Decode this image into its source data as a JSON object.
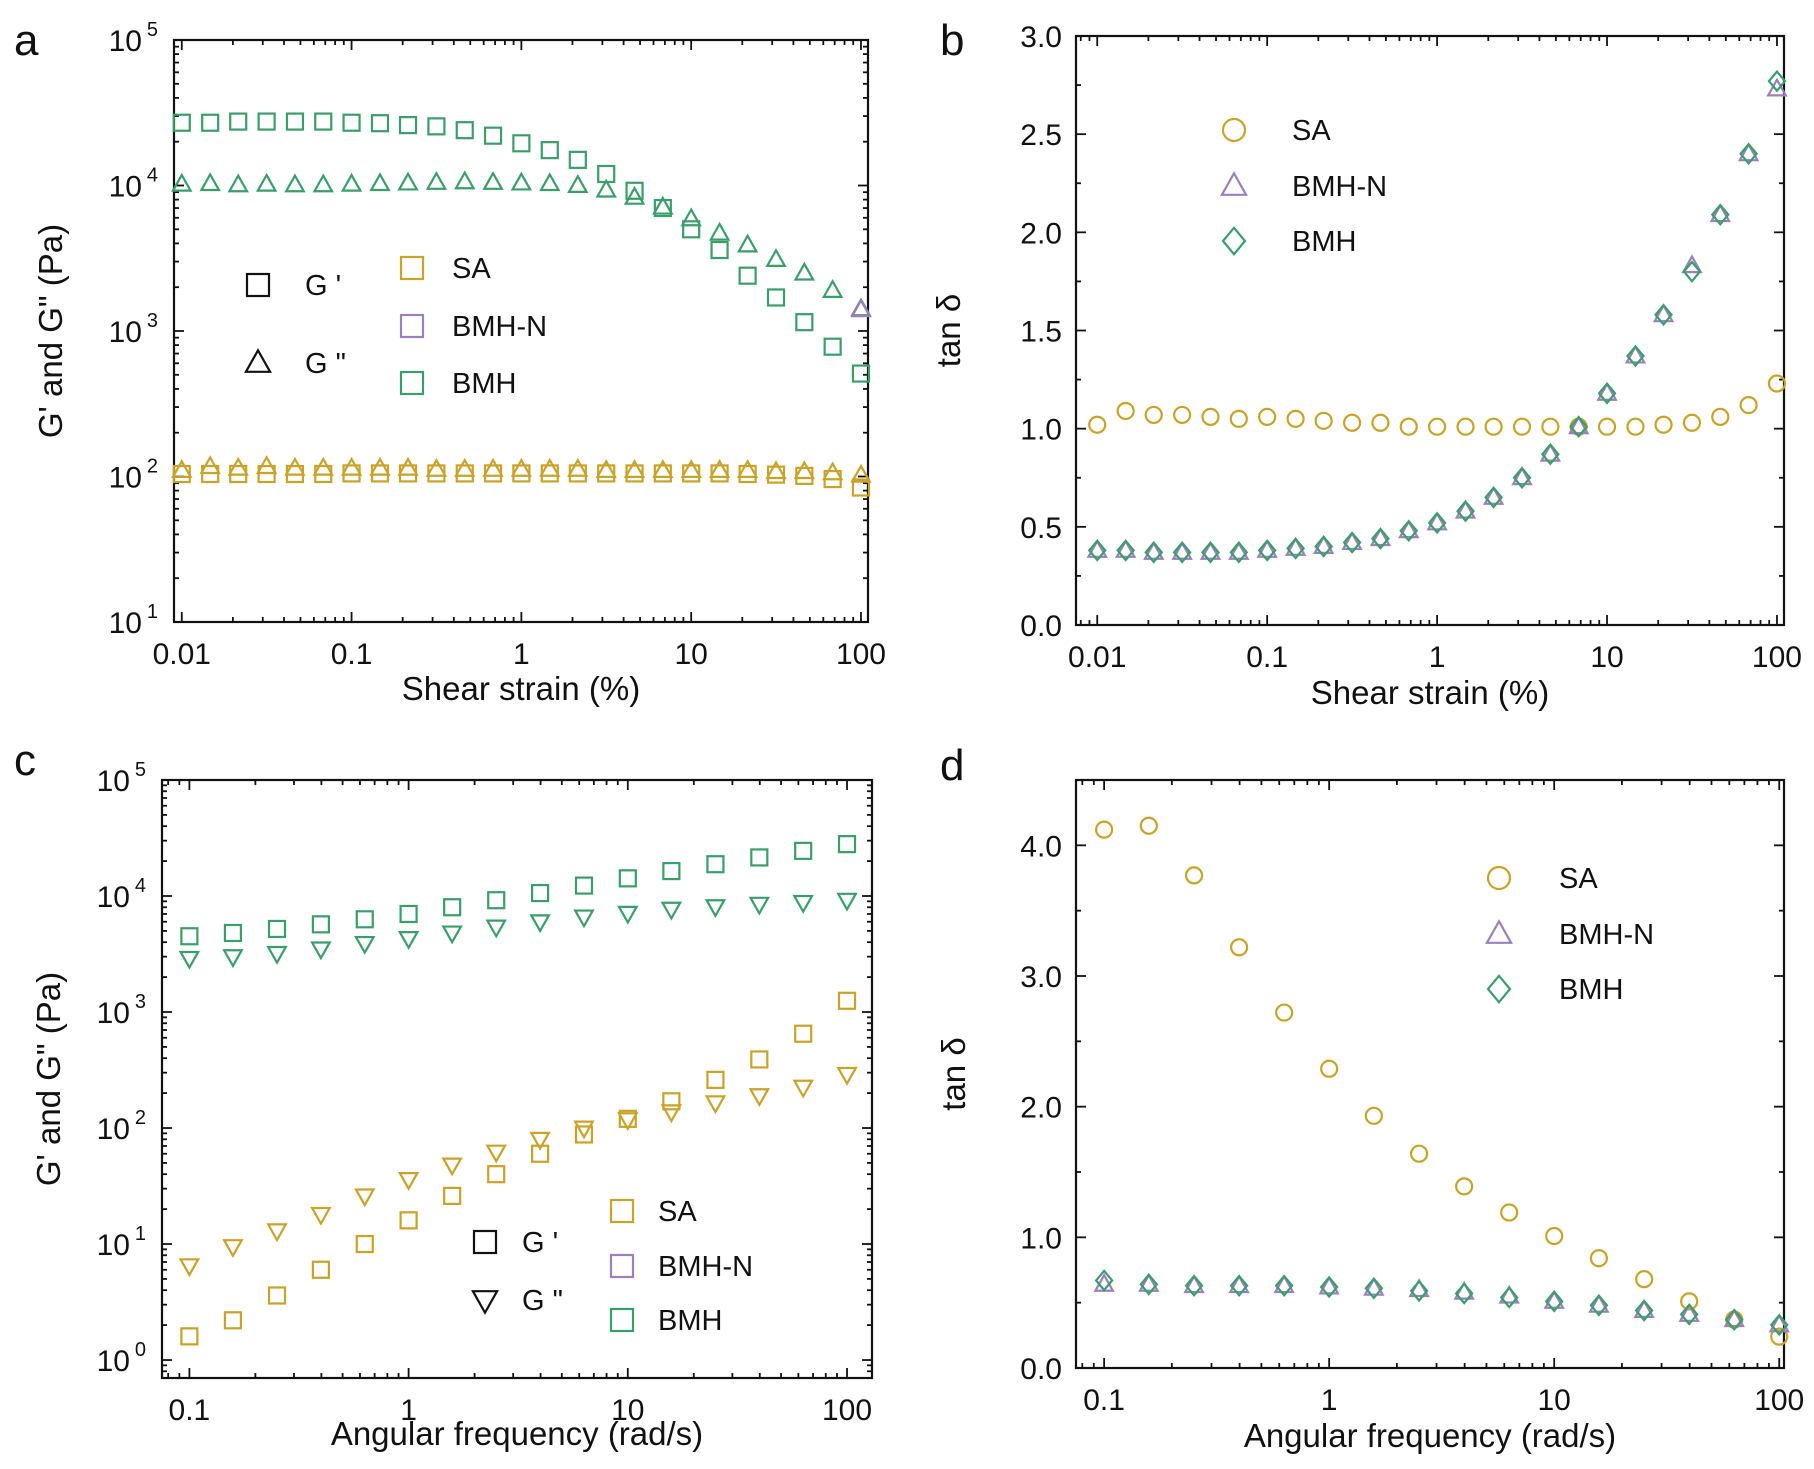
{
  "colors": {
    "SA": "#c9a227",
    "BMH-N": "#9b7fc0",
    "BMH": "#3a9e6a",
    "axis": "#111111"
  },
  "chart_data": [
    {
      "panel": "a",
      "type": "scatter",
      "xlabel": "Shear strain (%)",
      "ylabel": "G' and G\" (Pa)",
      "xscale": "log",
      "yscale": "log",
      "xlim": [
        0.009,
        110
      ],
      "ylim": [
        10,
        100000
      ],
      "xticks": [
        0.01,
        0.1,
        1,
        10,
        100
      ],
      "xtick_labels": [
        "0.01",
        "0.1",
        "1",
        "10",
        "100"
      ],
      "yticks": [
        10,
        100,
        1000,
        10000,
        100000
      ],
      "ytick_labels": [
        [
          "10",
          "1"
        ],
        [
          "10",
          "2"
        ],
        [
          "10",
          "3"
        ],
        [
          "10",
          "4"
        ],
        [
          "10",
          "5"
        ]
      ],
      "x": [
        0.01,
        0.0147,
        0.0215,
        0.0316,
        0.0464,
        0.0681,
        0.1,
        0.147,
        0.215,
        0.316,
        0.464,
        0.681,
        1,
        1.47,
        2.15,
        3.16,
        4.64,
        6.81,
        10,
        14.7,
        21.5,
        31.6,
        46.4,
        68.1,
        100
      ],
      "series": [
        {
          "name": "SA",
          "quantity": "G '",
          "marker": "square",
          "color_key": "SA",
          "values": [
            104,
            104,
            104,
            104,
            104,
            104,
            105,
            105,
            105,
            105,
            105,
            105,
            105,
            105,
            105,
            105,
            105,
            105,
            105,
            105,
            104,
            103,
            101,
            96,
            84
          ]
        },
        {
          "name": "SA",
          "quantity": "G \"",
          "marker": "triangle",
          "color_key": "SA",
          "values": [
            110,
            117,
            114,
            117,
            114,
            114,
            114,
            114,
            114,
            112,
            112,
            112,
            112,
            112,
            112,
            110,
            110,
            110,
            110,
            110,
            110,
            108,
            108,
            106,
            102
          ]
        },
        {
          "name": "BMH",
          "quantity": "G '",
          "marker": "square",
          "color_key": "BMH",
          "values": [
            27000,
            27000,
            27500,
            27500,
            27500,
            27500,
            27000,
            26800,
            26000,
            25500,
            24000,
            22000,
            19500,
            17500,
            15000,
            12000,
            9200,
            7000,
            5000,
            3600,
            2400,
            1700,
            1150,
            780,
            510
          ]
        },
        {
          "name": "BMH",
          "quantity": "G \"",
          "marker": "triangle",
          "color_key": "BMH",
          "values": [
            10200,
            10300,
            10100,
            10200,
            10100,
            10100,
            10200,
            10300,
            10400,
            10500,
            10600,
            10500,
            10400,
            10300,
            10000,
            9300,
            8300,
            7100,
            5900,
            4700,
            3900,
            3100,
            2500,
            1900,
            1420
          ]
        },
        {
          "name": "BMH-N",
          "quantity": "G \"",
          "marker": "triangle",
          "color_key": "BMH-N",
          "values": [
            1400
          ],
          "x_override": [
            100
          ]
        }
      ],
      "legend": {
        "markers": [
          {
            "label": "G '",
            "marker": "square"
          },
          {
            "label": "G \"",
            "marker": "triangle"
          }
        ],
        "samples": [
          {
            "label": "SA",
            "color_key": "SA"
          },
          {
            "label": "BMH-N",
            "color_key": "BMH-N"
          },
          {
            "label": "BMH",
            "color_key": "BMH"
          }
        ]
      }
    },
    {
      "panel": "b",
      "type": "scatter",
      "xlabel": "Shear strain (%)",
      "ylabel": "tan δ",
      "xscale": "log",
      "yscale": "linear",
      "xlim": [
        0.0075,
        110
      ],
      "ylim": [
        0,
        3.0
      ],
      "xticks": [
        0.01,
        0.1,
        1,
        10,
        100
      ],
      "xtick_labels": [
        "0.01",
        "0.1",
        "1",
        "10",
        "100"
      ],
      "yticks": [
        0,
        0.5,
        1.0,
        1.5,
        2.0,
        2.5,
        3.0
      ],
      "ytick_labels": [
        "0.0",
        "0.5",
        "1.0",
        "1.5",
        "2.0",
        "2.5",
        "3.0"
      ],
      "x": [
        0.01,
        0.0147,
        0.0215,
        0.0316,
        0.0464,
        0.0681,
        0.1,
        0.147,
        0.215,
        0.316,
        0.464,
        0.681,
        1,
        1.47,
        2.15,
        3.16,
        4.64,
        6.81,
        10,
        14.7,
        21.5,
        31.6,
        46.4,
        68.1,
        100
      ],
      "series": [
        {
          "name": "SA",
          "marker": "circle",
          "color_key": "SA",
          "values": [
            1.02,
            1.09,
            1.07,
            1.07,
            1.06,
            1.05,
            1.06,
            1.05,
            1.04,
            1.03,
            1.03,
            1.01,
            1.01,
            1.01,
            1.01,
            1.01,
            1.01,
            1.01,
            1.01,
            1.01,
            1.02,
            1.03,
            1.06,
            1.12,
            1.23
          ]
        },
        {
          "name": "BMH-N",
          "marker": "triangle",
          "color_key": "BMH-N",
          "values": [
            0.38,
            0.38,
            0.37,
            0.37,
            0.37,
            0.37,
            0.38,
            0.39,
            0.4,
            0.42,
            0.44,
            0.48,
            0.52,
            0.58,
            0.65,
            0.75,
            0.87,
            1.01,
            1.18,
            1.37,
            1.58,
            1.83,
            2.09,
            2.4,
            2.73
          ]
        },
        {
          "name": "BMH",
          "marker": "diamond",
          "color_key": "BMH",
          "values": [
            0.38,
            0.38,
            0.37,
            0.37,
            0.37,
            0.37,
            0.38,
            0.39,
            0.4,
            0.42,
            0.44,
            0.48,
            0.52,
            0.58,
            0.65,
            0.75,
            0.87,
            1.01,
            1.18,
            1.37,
            1.58,
            1.8,
            2.09,
            2.4,
            2.77
          ]
        }
      ],
      "legend": {
        "samples": [
          {
            "label": "SA",
            "marker": "circle",
            "color_key": "SA"
          },
          {
            "label": "BMH-N",
            "marker": "triangle",
            "color_key": "BMH-N"
          },
          {
            "label": "BMH",
            "marker": "diamond",
            "color_key": "BMH"
          }
        ]
      }
    },
    {
      "panel": "c",
      "type": "scatter",
      "xlabel": "Angular frequency (rad/s)",
      "ylabel": "G' and G\" (Pa)",
      "xscale": "log",
      "yscale": "log",
      "xlim": [
        0.075,
        130
      ],
      "ylim": [
        0.7,
        100000
      ],
      "xticks": [
        0.1,
        1,
        10,
        100
      ],
      "xtick_labels": [
        "0.1",
        "1",
        "10",
        "100"
      ],
      "yticks": [
        1,
        10,
        100,
        1000,
        10000,
        100000
      ],
      "ytick_labels": [
        [
          "10",
          "0"
        ],
        [
          "10",
          "1"
        ],
        [
          "10",
          "2"
        ],
        [
          "10",
          "3"
        ],
        [
          "10",
          "4"
        ],
        [
          "10",
          "5"
        ]
      ],
      "x": [
        0.1,
        0.158,
        0.251,
        0.398,
        0.631,
        1,
        1.58,
        2.51,
        3.98,
        6.31,
        10,
        15.8,
        25.1,
        39.8,
        63.1,
        100
      ],
      "series": [
        {
          "name": "SA",
          "quantity": "G '",
          "marker": "square",
          "color_key": "SA",
          "values": [
            1.6,
            2.2,
            3.6,
            6.0,
            10,
            16,
            26,
            40,
            60,
            88,
            120,
            170,
            260,
            390,
            650,
            1250
          ]
        },
        {
          "name": "SA",
          "quantity": "G \"",
          "marker": "invtriangle",
          "color_key": "SA",
          "values": [
            6.5,
            9.5,
            13,
            18,
            26,
            36,
            48,
            62,
            80,
            100,
            118,
            138,
            165,
            190,
            225,
            290
          ]
        },
        {
          "name": "BMH",
          "quantity": "G '",
          "marker": "square",
          "color_key": "BMH",
          "values": [
            4500,
            4800,
            5200,
            5700,
            6300,
            7000,
            8000,
            9200,
            10600,
            12300,
            14200,
            16400,
            18800,
            21500,
            24500,
            28000
          ]
        },
        {
          "name": "BMH",
          "quantity": "G \"",
          "marker": "invtriangle",
          "color_key": "BMH",
          "values": [
            2900,
            3000,
            3200,
            3500,
            3900,
            4300,
            4800,
            5400,
            6000,
            6600,
            7100,
            7700,
            8100,
            8500,
            8800,
            9200
          ]
        }
      ],
      "legend": {
        "markers": [
          {
            "label": "G '",
            "marker": "square"
          },
          {
            "label": "G \"",
            "marker": "invtriangle"
          }
        ],
        "samples": [
          {
            "label": "SA",
            "color_key": "SA"
          },
          {
            "label": "BMH-N",
            "color_key": "BMH-N"
          },
          {
            "label": "BMH",
            "color_key": "BMH"
          }
        ]
      }
    },
    {
      "panel": "d",
      "type": "scatter",
      "xlabel": "Angular frequency (rad/s)",
      "ylabel": "tan δ",
      "xscale": "log",
      "yscale": "linear",
      "xlim": [
        0.075,
        105
      ],
      "ylim": [
        0,
        4.5
      ],
      "xticks": [
        0.1,
        1,
        10,
        100
      ],
      "xtick_labels": [
        "0.1",
        "1",
        "10",
        "100"
      ],
      "yticks": [
        0,
        1.0,
        2.0,
        3.0,
        4.0
      ],
      "ytick_labels": [
        "0.0",
        "1.0",
        "2.0",
        "3.0",
        "4.0"
      ],
      "x": [
        0.1,
        0.158,
        0.251,
        0.398,
        0.631,
        1,
        1.58,
        2.51,
        3.98,
        6.31,
        10,
        15.8,
        25.1,
        39.8,
        63.1,
        100
      ],
      "series": [
        {
          "name": "SA",
          "marker": "circle",
          "color_key": "SA",
          "values": [
            4.12,
            4.15,
            3.77,
            3.22,
            2.72,
            2.29,
            1.93,
            1.64,
            1.39,
            1.19,
            1.01,
            0.84,
            0.68,
            0.51,
            0.37,
            0.24
          ]
        },
        {
          "name": "BMH-N",
          "marker": "triangle",
          "color_key": "BMH-N",
          "values": [
            0.64,
            0.64,
            0.63,
            0.63,
            0.63,
            0.62,
            0.61,
            0.6,
            0.58,
            0.55,
            0.51,
            0.48,
            0.44,
            0.41,
            0.37,
            0.33
          ]
        },
        {
          "name": "BMH",
          "marker": "diamond",
          "color_key": "BMH",
          "values": [
            0.67,
            0.64,
            0.63,
            0.63,
            0.63,
            0.62,
            0.61,
            0.59,
            0.57,
            0.54,
            0.51,
            0.48,
            0.44,
            0.41,
            0.37,
            0.33
          ]
        }
      ],
      "legend": {
        "samples": [
          {
            "label": "SA",
            "marker": "circle",
            "color_key": "SA"
          },
          {
            "label": "BMH-N",
            "marker": "triangle",
            "color_key": "BMH-N"
          },
          {
            "label": "BMH",
            "marker": "diamond",
            "color_key": "BMH"
          }
        ]
      }
    }
  ]
}
